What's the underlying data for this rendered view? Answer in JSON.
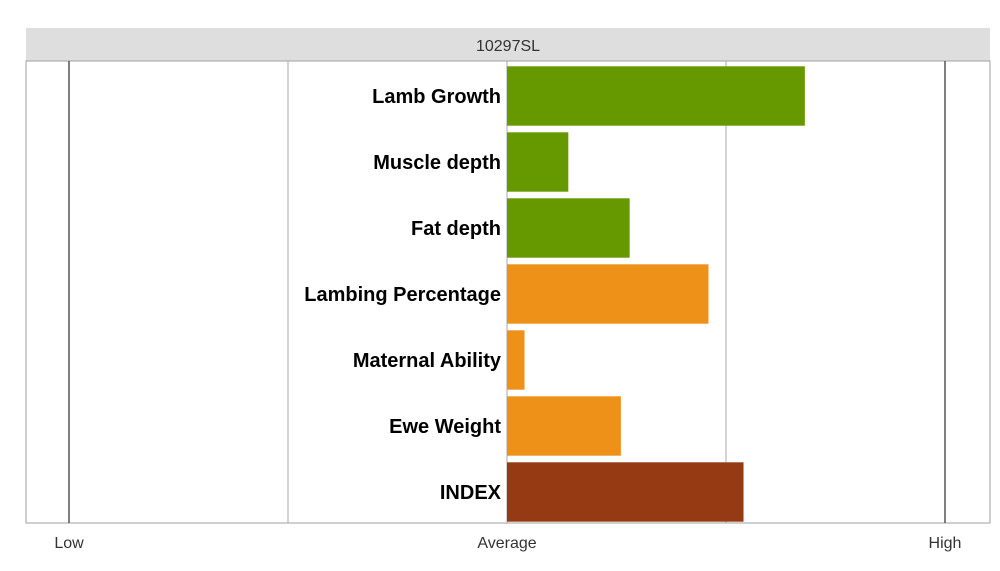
{
  "chart_data": {
    "type": "bar",
    "orientation": "horizontal",
    "title": "10297SL",
    "xlabel": "",
    "ylabel": "",
    "xlim": [
      -1,
      1
    ],
    "ticks": [
      {
        "value": -1,
        "label": "Low"
      },
      {
        "value": 0,
        "label": "Average"
      },
      {
        "value": 1,
        "label": "High"
      }
    ],
    "gridlines": [
      -1,
      -0.5,
      0,
      0.5,
      1
    ],
    "categories": [
      "Lamb Growth",
      "Muscle depth",
      "Fat depth",
      "Lambing Percentage",
      "Maternal Ability",
      "Ewe Weight",
      "INDEX"
    ],
    "values": [
      0.68,
      0.14,
      0.28,
      0.46,
      0.04,
      0.26,
      0.54
    ],
    "bar_colors": [
      "#669900",
      "#669900",
      "#669900",
      "#EE9119",
      "#EE9119",
      "#EE9119",
      "#963A13"
    ],
    "legend": false
  }
}
